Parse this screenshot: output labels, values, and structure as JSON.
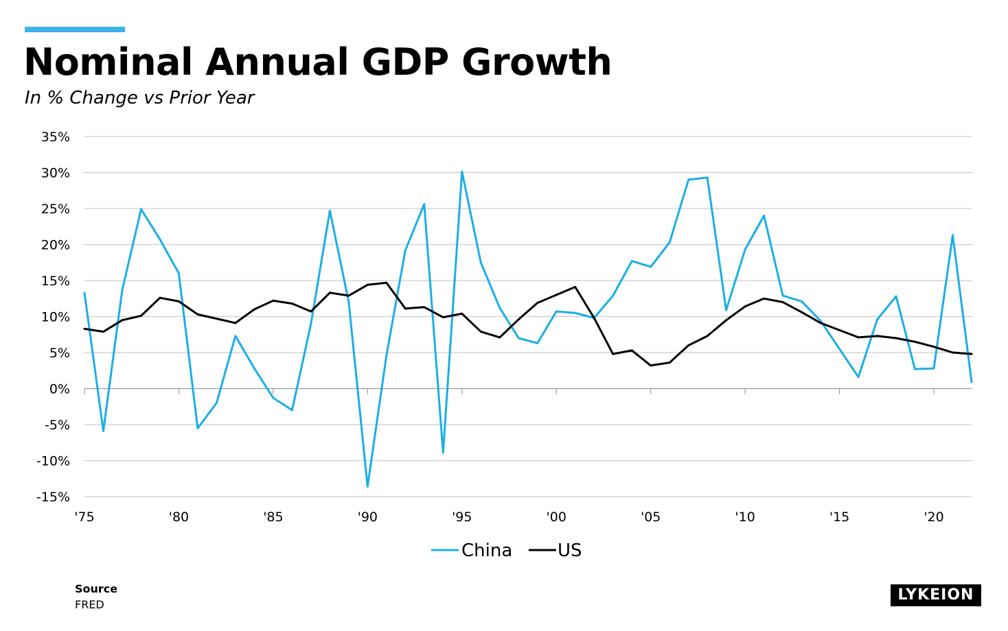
{
  "header": {
    "title": "Nominal Annual GDP Growth",
    "subtitle": "In % Change vs Prior Year"
  },
  "footer": {
    "source_label": "Source",
    "source_value": "FRED",
    "logo_text": "LYKEION"
  },
  "colors": {
    "accent": "#3bb4e5",
    "china": "#1aaee6",
    "us": "#000000",
    "grid": "#cccccc"
  },
  "chart_data": {
    "type": "line",
    "title": "Nominal Annual GDP Growth",
    "subtitle": "In % Change vs Prior Year",
    "xlabel": "",
    "ylabel": "",
    "x": [
      1975,
      1976,
      1977,
      1978,
      1979,
      1980,
      1981,
      1982,
      1983,
      1984,
      1985,
      1986,
      1987,
      1988,
      1989,
      1990,
      1991,
      1992,
      1993,
      1994,
      1995,
      1996,
      1997,
      1998,
      1999,
      2000,
      2001,
      2002,
      2003,
      2004,
      2005,
      2006,
      2007,
      2008,
      2009,
      2010,
      2011,
      2012,
      2013,
      2014,
      2015,
      2016,
      2017,
      2018,
      2019,
      2020,
      2021,
      2022
    ],
    "xlim": [
      1975,
      2022
    ],
    "ylim": [
      -15,
      35
    ],
    "y_ticks": [
      -15,
      -10,
      -5,
      0,
      5,
      10,
      15,
      20,
      25,
      30,
      35
    ],
    "y_tick_labels": [
      "-15%",
      "-10%",
      "-5%",
      "0%",
      "5%",
      "10%",
      "15%",
      "20%",
      "25%",
      "30%",
      "35%"
    ],
    "x_ticks": [
      1975,
      1980,
      1985,
      1990,
      1995,
      2000,
      2005,
      2010,
      2015,
      2020
    ],
    "x_tick_labels": [
      "'75",
      "'80",
      "'85",
      "'90",
      "'95",
      "'00",
      "'05",
      "'10",
      "'15",
      "'20"
    ],
    "grid": true,
    "legend_position": "bottom-center",
    "series": [
      {
        "name": "China",
        "color": "#1aaee6",
        "values": [
          13.3,
          -5.9,
          13.7,
          24.9,
          20.7,
          16.0,
          -5.5,
          -2.0,
          7.3,
          2.8,
          -1.3,
          -3.0,
          9.0,
          24.7,
          12.0,
          -13.6,
          4.6,
          19.2,
          25.6,
          -8.9,
          30.1,
          17.5,
          11.2,
          7.0,
          6.3,
          10.7,
          10.5,
          9.8,
          12.9,
          17.7,
          16.9,
          20.3,
          29.0,
          29.3,
          10.9,
          19.3,
          24.0,
          12.9,
          12.1,
          9.4,
          5.5,
          1.6,
          9.6,
          12.8,
          2.7,
          2.8,
          21.3,
          0.9
        ]
      },
      {
        "name": "US",
        "color": "#000000",
        "values": [
          8.3,
          7.9,
          9.5,
          10.1,
          12.6,
          12.1,
          10.3,
          9.7,
          9.1,
          11.0,
          12.2,
          11.8,
          10.7,
          13.3,
          12.9,
          14.4,
          14.7,
          11.1,
          11.3,
          9.9,
          10.4,
          7.9,
          7.1,
          9.6,
          11.9,
          13.0,
          14.1,
          9.8,
          4.8,
          5.3,
          3.2,
          3.6,
          6.0,
          7.3,
          9.5,
          11.4,
          12.5,
          12.0,
          10.6,
          9.1,
          8.1,
          7.1,
          7.3,
          7.0,
          6.5,
          5.8,
          5.0,
          4.8
        ]
      }
    ]
  }
}
